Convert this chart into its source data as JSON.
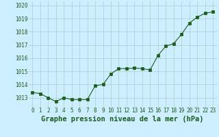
{
  "x": [
    0,
    1,
    2,
    3,
    4,
    5,
    6,
    7,
    8,
    9,
    10,
    11,
    12,
    13,
    14,
    15,
    16,
    17,
    18,
    19,
    20,
    21,
    22,
    23
  ],
  "y": [
    1013.4,
    1013.3,
    1013.0,
    1012.7,
    1013.0,
    1012.85,
    1012.85,
    1012.85,
    1013.9,
    1014.0,
    1014.8,
    1015.2,
    1015.2,
    1015.25,
    1015.2,
    1015.1,
    1016.2,
    1016.9,
    1017.1,
    1017.8,
    1018.65,
    1019.1,
    1019.4,
    1019.5
  ],
  "line_color": "#1a5c1a",
  "marker": "s",
  "marker_size": 2.5,
  "bg_color": "#cceeff",
  "grid_color": "#aacccc",
  "xlabel": "Graphe pression niveau de la mer (hPa)",
  "xlabel_color": "#1a5c1a",
  "xlabel_fontsize": 7.5,
  "tick_color": "#1a5c1a",
  "tick_fontsize": 5.5,
  "ylim": [
    1012.3,
    1020.3
  ],
  "yticks": [
    1013,
    1014,
    1015,
    1016,
    1017,
    1018,
    1019,
    1020
  ],
  "xticks": [
    0,
    1,
    2,
    3,
    4,
    5,
    6,
    7,
    8,
    9,
    10,
    11,
    12,
    13,
    14,
    15,
    16,
    17,
    18,
    19,
    20,
    21,
    22,
    23
  ],
  "xlim": [
    -0.5,
    23.5
  ]
}
